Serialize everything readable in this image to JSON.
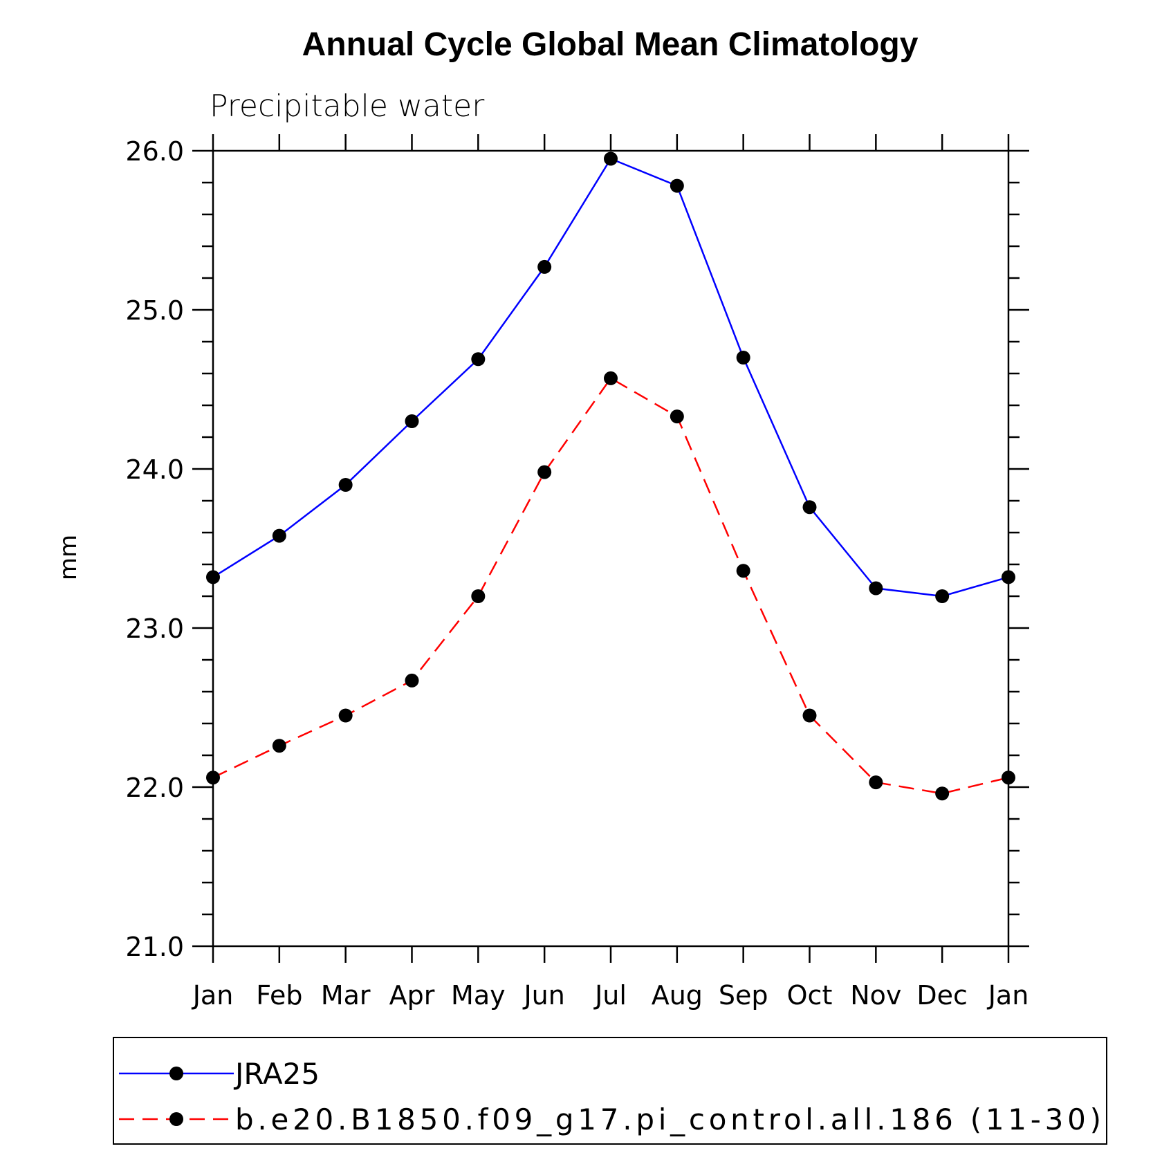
{
  "chart_data": {
    "type": "line",
    "title": "Annual Cycle Global Mean Climatology",
    "subtitle": "Precipitable water",
    "ylabel": "mm",
    "xlabel": "",
    "categories": [
      "Jan",
      "Feb",
      "Mar",
      "Apr",
      "May",
      "Jun",
      "Jul",
      "Aug",
      "Sep",
      "Oct",
      "Nov",
      "Dec",
      "Jan"
    ],
    "ylim": [
      21.0,
      26.0
    ],
    "yticks": [
      "21.0",
      "22.0",
      "23.0",
      "24.0",
      "25.0",
      "26.0"
    ],
    "grid": false,
    "legend_position": "bottom",
    "series": [
      {
        "name": "JRA25",
        "color": "#0000ff",
        "dash": "solid",
        "values": [
          23.32,
          23.58,
          23.9,
          24.3,
          24.69,
          25.27,
          25.95,
          25.78,
          24.7,
          23.76,
          23.25,
          23.2,
          23.32
        ]
      },
      {
        "name": "b.e20.B1850.f09_g17.pi_control.all.186 (11-30)",
        "color": "#ff0000",
        "dash": "dashed",
        "values": [
          22.06,
          22.26,
          22.45,
          22.67,
          23.2,
          23.98,
          24.57,
          24.33,
          23.36,
          22.45,
          22.03,
          21.96,
          22.06
        ]
      }
    ]
  }
}
